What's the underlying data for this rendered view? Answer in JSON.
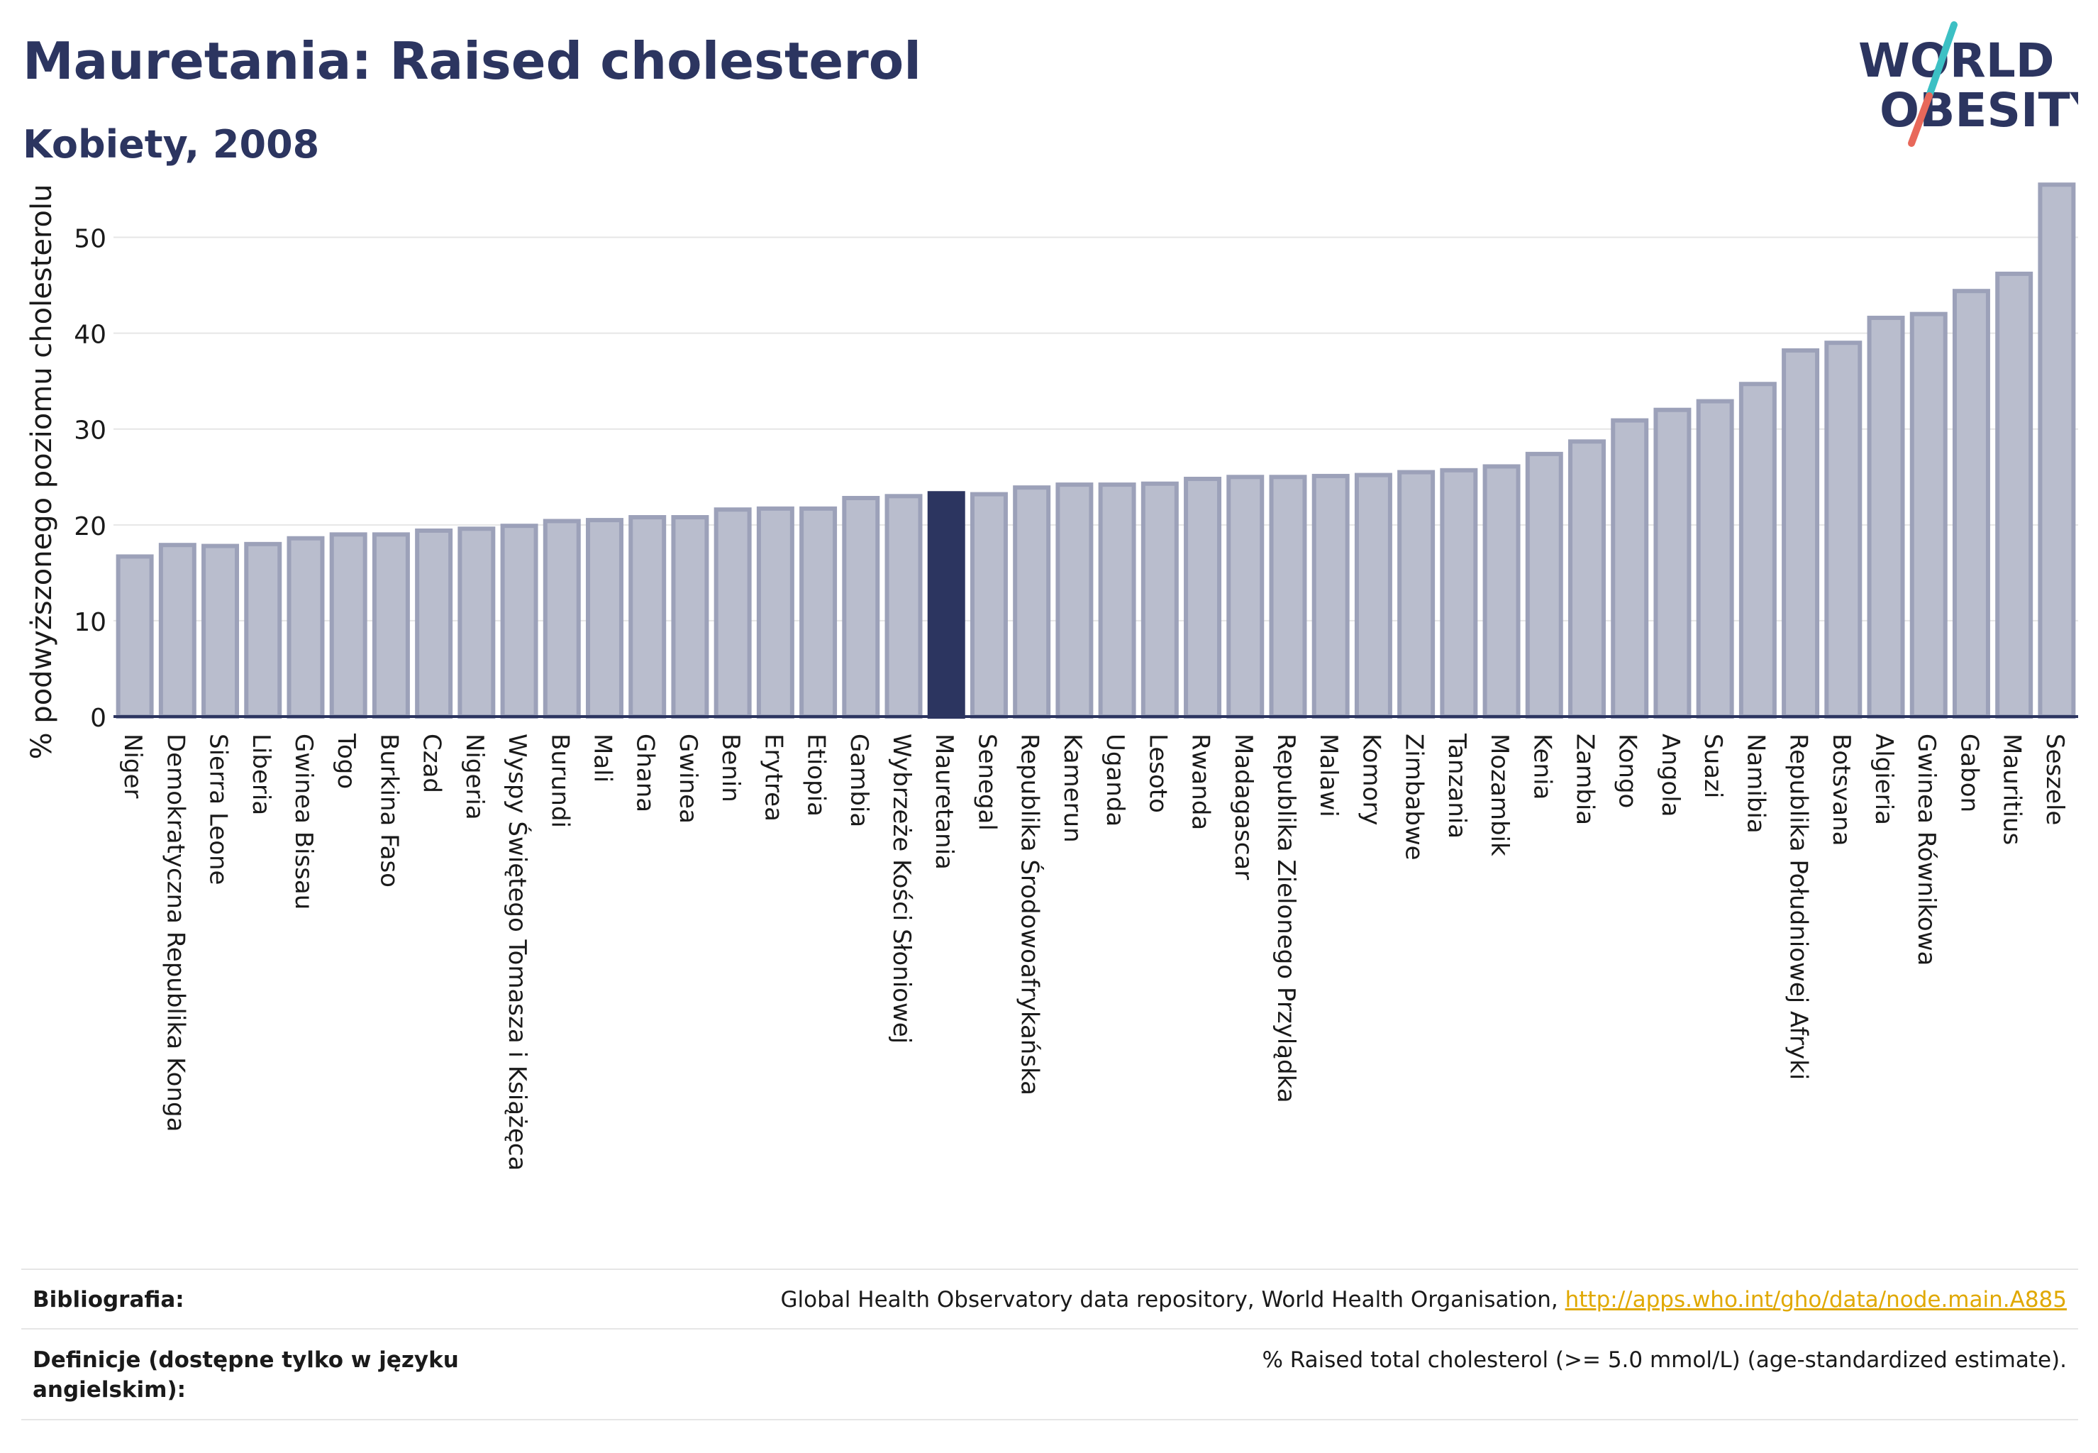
{
  "header": {
    "title": "Mauretania: Raised cholesterol",
    "subtitle": "Kobiety, 2008"
  },
  "logo": {
    "line1": "WORLD",
    "line2": "OBESITY",
    "text_color": "#2c3560",
    "slash_color_top": "#3cc0c4",
    "slash_color_bottom": "#e8685a"
  },
  "colors": {
    "bar": "#b9bdcd",
    "bar_border": "#9ca1b9",
    "highlight": "#2c3560",
    "grid": "#e6e6e6",
    "axis": "#2c3560",
    "text": "#1a1a1a"
  },
  "chart_data": {
    "type": "bar",
    "ylabel": "% podwyższonego poziomu cholesterolu",
    "ylim": [
      0,
      57
    ],
    "yticks": [
      0,
      10,
      20,
      30,
      40,
      50
    ],
    "grid": true,
    "highlight": "Mauretania",
    "categories": [
      "Niger",
      "Demokratyczna Republika Konga",
      "Sierra Leone",
      "Liberia",
      "Gwinea Bissau",
      "Togo",
      "Burkina Faso",
      "Czad",
      "Nigeria",
      "Wyspy Świętego Tomasza i Książęca",
      "Burundi",
      "Mali",
      "Ghana",
      "Gwinea",
      "Benin",
      "Erytrea",
      "Etiopia",
      "Gambia",
      "Wybrzeże Kości Słoniowej",
      "Mauretania",
      "Senegal",
      "Republika Środowoafrykańska",
      "Kamerun",
      "Uganda",
      "Lesoto",
      "Rwanda",
      "Madagascar",
      "Republika Zielonego Przylądka",
      "Malawi",
      "Komory",
      "Zimbabwe",
      "Tanzania",
      "Mozambik",
      "Kenia",
      "Zambia",
      "Kongo",
      "Angola",
      "Suazi",
      "Namibia",
      "Republika Południowej Afryki",
      "Botsvana",
      "Algieria",
      "Gwinea Równikowa",
      "Gabon",
      "Mauritius",
      "Seszele"
    ],
    "values": [
      16.7,
      17.9,
      17.8,
      18.0,
      18.6,
      19.0,
      19.0,
      19.4,
      19.6,
      19.9,
      20.4,
      20.5,
      20.8,
      20.8,
      21.6,
      21.7,
      21.7,
      22.8,
      23.0,
      23.3,
      23.2,
      23.9,
      24.2,
      24.2,
      24.3,
      24.8,
      25.0,
      25.0,
      25.1,
      25.2,
      25.5,
      25.7,
      26.1,
      27.4,
      28.7,
      30.9,
      32.0,
      32.9,
      34.7,
      38.2,
      39.0,
      41.6,
      42.0,
      44.4,
      46.2,
      55.5
    ]
  },
  "footer": {
    "bibliography_label": "Bibliografia:",
    "bibliography_text": "Global Health Observatory data repository, World Health Organisation, ",
    "bibliography_link": "http://apps.who.int/gho/data/node.main.A885",
    "definitions_label": "Definicje (dostępne tylko w języku angielskim):",
    "definitions_text": "% Raised total cholesterol (>= 5.0 mmol/L) (age-standardized estimate)."
  }
}
